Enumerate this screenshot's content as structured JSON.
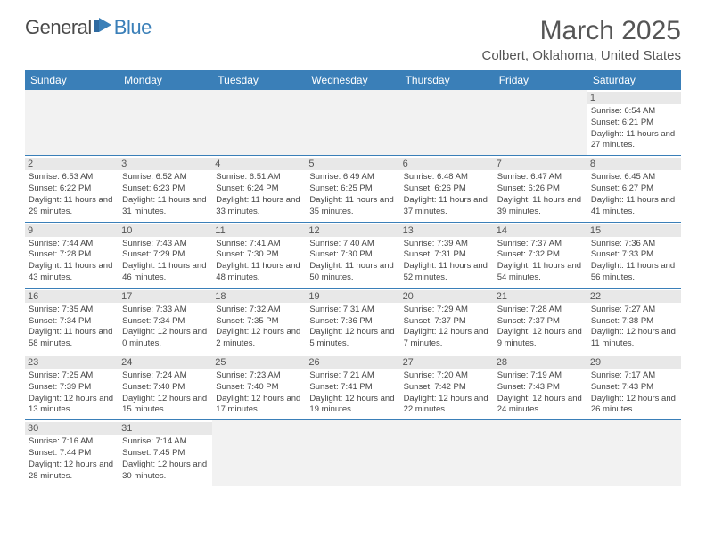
{
  "logo": {
    "general": "General",
    "blue": "Blue"
  },
  "header": {
    "month_title": "March 2025",
    "location": "Colbert, Oklahoma, United States"
  },
  "colors": {
    "header_bg": "#3a7fb8",
    "header_text": "#ffffff",
    "daynum_bg": "#e8e8e8",
    "border": "#3a7fb8",
    "empty_bg": "#f2f2f2"
  },
  "weekdays": [
    "Sunday",
    "Monday",
    "Tuesday",
    "Wednesday",
    "Thursday",
    "Friday",
    "Saturday"
  ],
  "weeks": [
    [
      {
        "empty": true
      },
      {
        "empty": true
      },
      {
        "empty": true
      },
      {
        "empty": true
      },
      {
        "empty": true
      },
      {
        "empty": true
      },
      {
        "day": "1",
        "sunrise": "Sunrise: 6:54 AM",
        "sunset": "Sunset: 6:21 PM",
        "daylight": "Daylight: 11 hours and 27 minutes."
      }
    ],
    [
      {
        "day": "2",
        "sunrise": "Sunrise: 6:53 AM",
        "sunset": "Sunset: 6:22 PM",
        "daylight": "Daylight: 11 hours and 29 minutes."
      },
      {
        "day": "3",
        "sunrise": "Sunrise: 6:52 AM",
        "sunset": "Sunset: 6:23 PM",
        "daylight": "Daylight: 11 hours and 31 minutes."
      },
      {
        "day": "4",
        "sunrise": "Sunrise: 6:51 AM",
        "sunset": "Sunset: 6:24 PM",
        "daylight": "Daylight: 11 hours and 33 minutes."
      },
      {
        "day": "5",
        "sunrise": "Sunrise: 6:49 AM",
        "sunset": "Sunset: 6:25 PM",
        "daylight": "Daylight: 11 hours and 35 minutes."
      },
      {
        "day": "6",
        "sunrise": "Sunrise: 6:48 AM",
        "sunset": "Sunset: 6:26 PM",
        "daylight": "Daylight: 11 hours and 37 minutes."
      },
      {
        "day": "7",
        "sunrise": "Sunrise: 6:47 AM",
        "sunset": "Sunset: 6:26 PM",
        "daylight": "Daylight: 11 hours and 39 minutes."
      },
      {
        "day": "8",
        "sunrise": "Sunrise: 6:45 AM",
        "sunset": "Sunset: 6:27 PM",
        "daylight": "Daylight: 11 hours and 41 minutes."
      }
    ],
    [
      {
        "day": "9",
        "sunrise": "Sunrise: 7:44 AM",
        "sunset": "Sunset: 7:28 PM",
        "daylight": "Daylight: 11 hours and 43 minutes."
      },
      {
        "day": "10",
        "sunrise": "Sunrise: 7:43 AM",
        "sunset": "Sunset: 7:29 PM",
        "daylight": "Daylight: 11 hours and 46 minutes."
      },
      {
        "day": "11",
        "sunrise": "Sunrise: 7:41 AM",
        "sunset": "Sunset: 7:30 PM",
        "daylight": "Daylight: 11 hours and 48 minutes."
      },
      {
        "day": "12",
        "sunrise": "Sunrise: 7:40 AM",
        "sunset": "Sunset: 7:30 PM",
        "daylight": "Daylight: 11 hours and 50 minutes."
      },
      {
        "day": "13",
        "sunrise": "Sunrise: 7:39 AM",
        "sunset": "Sunset: 7:31 PM",
        "daylight": "Daylight: 11 hours and 52 minutes."
      },
      {
        "day": "14",
        "sunrise": "Sunrise: 7:37 AM",
        "sunset": "Sunset: 7:32 PM",
        "daylight": "Daylight: 11 hours and 54 minutes."
      },
      {
        "day": "15",
        "sunrise": "Sunrise: 7:36 AM",
        "sunset": "Sunset: 7:33 PM",
        "daylight": "Daylight: 11 hours and 56 minutes."
      }
    ],
    [
      {
        "day": "16",
        "sunrise": "Sunrise: 7:35 AM",
        "sunset": "Sunset: 7:34 PM",
        "daylight": "Daylight: 11 hours and 58 minutes."
      },
      {
        "day": "17",
        "sunrise": "Sunrise: 7:33 AM",
        "sunset": "Sunset: 7:34 PM",
        "daylight": "Daylight: 12 hours and 0 minutes."
      },
      {
        "day": "18",
        "sunrise": "Sunrise: 7:32 AM",
        "sunset": "Sunset: 7:35 PM",
        "daylight": "Daylight: 12 hours and 2 minutes."
      },
      {
        "day": "19",
        "sunrise": "Sunrise: 7:31 AM",
        "sunset": "Sunset: 7:36 PM",
        "daylight": "Daylight: 12 hours and 5 minutes."
      },
      {
        "day": "20",
        "sunrise": "Sunrise: 7:29 AM",
        "sunset": "Sunset: 7:37 PM",
        "daylight": "Daylight: 12 hours and 7 minutes."
      },
      {
        "day": "21",
        "sunrise": "Sunrise: 7:28 AM",
        "sunset": "Sunset: 7:37 PM",
        "daylight": "Daylight: 12 hours and 9 minutes."
      },
      {
        "day": "22",
        "sunrise": "Sunrise: 7:27 AM",
        "sunset": "Sunset: 7:38 PM",
        "daylight": "Daylight: 12 hours and 11 minutes."
      }
    ],
    [
      {
        "day": "23",
        "sunrise": "Sunrise: 7:25 AM",
        "sunset": "Sunset: 7:39 PM",
        "daylight": "Daylight: 12 hours and 13 minutes."
      },
      {
        "day": "24",
        "sunrise": "Sunrise: 7:24 AM",
        "sunset": "Sunset: 7:40 PM",
        "daylight": "Daylight: 12 hours and 15 minutes."
      },
      {
        "day": "25",
        "sunrise": "Sunrise: 7:23 AM",
        "sunset": "Sunset: 7:40 PM",
        "daylight": "Daylight: 12 hours and 17 minutes."
      },
      {
        "day": "26",
        "sunrise": "Sunrise: 7:21 AM",
        "sunset": "Sunset: 7:41 PM",
        "daylight": "Daylight: 12 hours and 19 minutes."
      },
      {
        "day": "27",
        "sunrise": "Sunrise: 7:20 AM",
        "sunset": "Sunset: 7:42 PM",
        "daylight": "Daylight: 12 hours and 22 minutes."
      },
      {
        "day": "28",
        "sunrise": "Sunrise: 7:19 AM",
        "sunset": "Sunset: 7:43 PM",
        "daylight": "Daylight: 12 hours and 24 minutes."
      },
      {
        "day": "29",
        "sunrise": "Sunrise: 7:17 AM",
        "sunset": "Sunset: 7:43 PM",
        "daylight": "Daylight: 12 hours and 26 minutes."
      }
    ],
    [
      {
        "day": "30",
        "sunrise": "Sunrise: 7:16 AM",
        "sunset": "Sunset: 7:44 PM",
        "daylight": "Daylight: 12 hours and 28 minutes."
      },
      {
        "day": "31",
        "sunrise": "Sunrise: 7:14 AM",
        "sunset": "Sunset: 7:45 PM",
        "daylight": "Daylight: 12 hours and 30 minutes."
      },
      {
        "empty": true
      },
      {
        "empty": true
      },
      {
        "empty": true
      },
      {
        "empty": true
      },
      {
        "empty": true
      }
    ]
  ]
}
